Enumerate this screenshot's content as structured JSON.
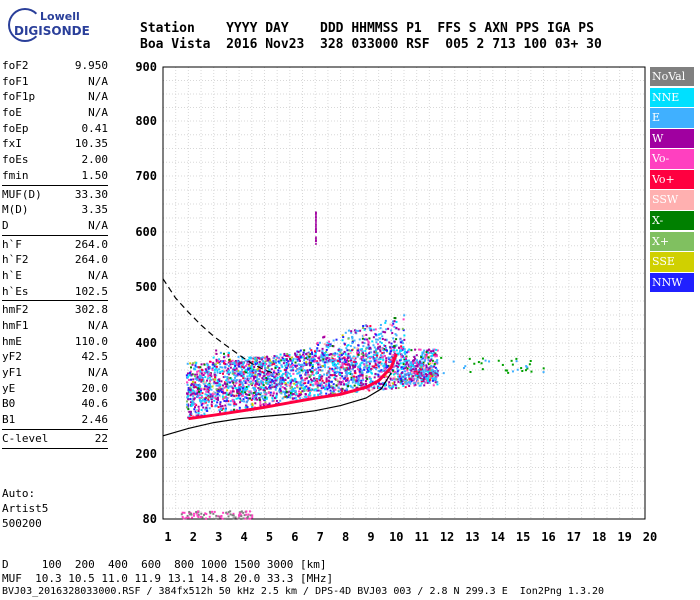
{
  "logo": {
    "line1": "Lowell",
    "line2": "DIGISONDE"
  },
  "header": {
    "line1": "Station    YYYY DAY    DDD HHMMSS P1  FFS S AXN PPS IGA PS",
    "line2": "Boa Vista  2016 Nov23  328 033000 RSF  005 2 713 100 03+ 30"
  },
  "params_group1": [
    {
      "k": "foF2",
      "v": "9.950"
    },
    {
      "k": "foF1",
      "v": "N/A"
    },
    {
      "k": "foF1p",
      "v": "N/A"
    },
    {
      "k": "foE",
      "v": "N/A"
    },
    {
      "k": "foEp",
      "v": "0.41"
    },
    {
      "k": "fxI",
      "v": "10.35"
    },
    {
      "k": "foEs",
      "v": "2.00"
    },
    {
      "k": "fmin",
      "v": "1.50"
    }
  ],
  "params_group2": [
    {
      "k": "MUF(D)",
      "v": "33.30"
    },
    {
      "k": "M(D)",
      "v": "3.35"
    },
    {
      "k": "D",
      "v": "N/A"
    }
  ],
  "params_group3": [
    {
      "k": "h`F",
      "v": "264.0"
    },
    {
      "k": "h`F2",
      "v": "264.0"
    },
    {
      "k": "h`E",
      "v": "N/A"
    },
    {
      "k": "h`Es",
      "v": "102.5"
    }
  ],
  "params_group4": [
    {
      "k": "hmF2",
      "v": "302.8"
    },
    {
      "k": "hmF1",
      "v": "N/A"
    },
    {
      "k": "hmE",
      "v": "110.0"
    },
    {
      "k": "yF2",
      "v": "42.5"
    },
    {
      "k": "yF1",
      "v": "N/A"
    },
    {
      "k": "yE",
      "v": "20.0"
    },
    {
      "k": "B0",
      "v": "40.6"
    },
    {
      "k": "B1",
      "v": "2.46"
    }
  ],
  "params_group5": [
    {
      "k": "C-level",
      "v": "22"
    }
  ],
  "auto": {
    "line1": "Auto:",
    "line2": "Artist5",
    "line3": "500200"
  },
  "legend": [
    {
      "label": "NoVal",
      "color": "#808080"
    },
    {
      "label": "NNE",
      "color": "#00e0ff"
    },
    {
      "label": "E",
      "color": "#40b0ff"
    },
    {
      "label": "W",
      "color": "#a000a0"
    },
    {
      "label": "Vo-",
      "color": "#ff40c0"
    },
    {
      "label": "Vo+",
      "color": "#ff0040"
    },
    {
      "label": "SSW",
      "color": "#ffb0b0"
    },
    {
      "label": "X-",
      "color": "#008000"
    },
    {
      "label": "X+",
      "color": "#80c060"
    },
    {
      "label": "SSE",
      "color": "#d0d000"
    },
    {
      "label": "NNW",
      "color": "#2020ff"
    }
  ],
  "bottom": {
    "line1": "D     100  200  400  600  800 1000 1500 3000 [km]",
    "line2": "MUF  10.3 10.5 11.0 11.9 13.1 14.8 20.0 33.3 [MHz]",
    "line3": "BVJ03_2016328033000.RSF / 384fx512h 50 kHz 2.5 km / DPS-4D BVJ03 003 / 2.8 N 299.3 E  Ion2Png 1.3.20"
  },
  "chart_data": {
    "type": "scatter",
    "title": "",
    "xlabel": "",
    "ylabel": "",
    "xlim": [
      1,
      20
    ],
    "ylim": [
      80,
      900
    ],
    "xticks": [
      1,
      2,
      3,
      4,
      5,
      6,
      7,
      8,
      9,
      10,
      11,
      12,
      13,
      14,
      15,
      16,
      17,
      18,
      19,
      20
    ],
    "yticks": [
      80,
      200,
      300,
      400,
      500,
      600,
      700,
      800,
      900
    ],
    "grid": true,
    "trace": {
      "name": "Vo+",
      "color": "#ff0040",
      "x": [
        2.0,
        3.0,
        4.0,
        5.0,
        6.0,
        7.0,
        8.0,
        9.0,
        9.5,
        10.0,
        10.2
      ],
      "y": [
        262,
        268,
        275,
        282,
        290,
        298,
        305,
        318,
        330,
        355,
        380
      ]
    },
    "profile_solid": {
      "x": [
        1.0,
        2.0,
        3.0,
        4.0,
        5.0,
        6.0,
        7.0,
        8.0,
        9.0,
        9.6,
        10.0
      ],
      "y": [
        232,
        245,
        255,
        262,
        266,
        270,
        276,
        285,
        298,
        315,
        345
      ]
    },
    "profile_dashed": {
      "x": [
        1.0,
        1.5,
        2.0,
        2.5,
        3.0,
        3.5,
        4.0,
        4.5,
        5.0,
        5.5
      ],
      "y": [
        515,
        480,
        455,
        432,
        412,
        395,
        378,
        362,
        350,
        342
      ]
    }
  }
}
